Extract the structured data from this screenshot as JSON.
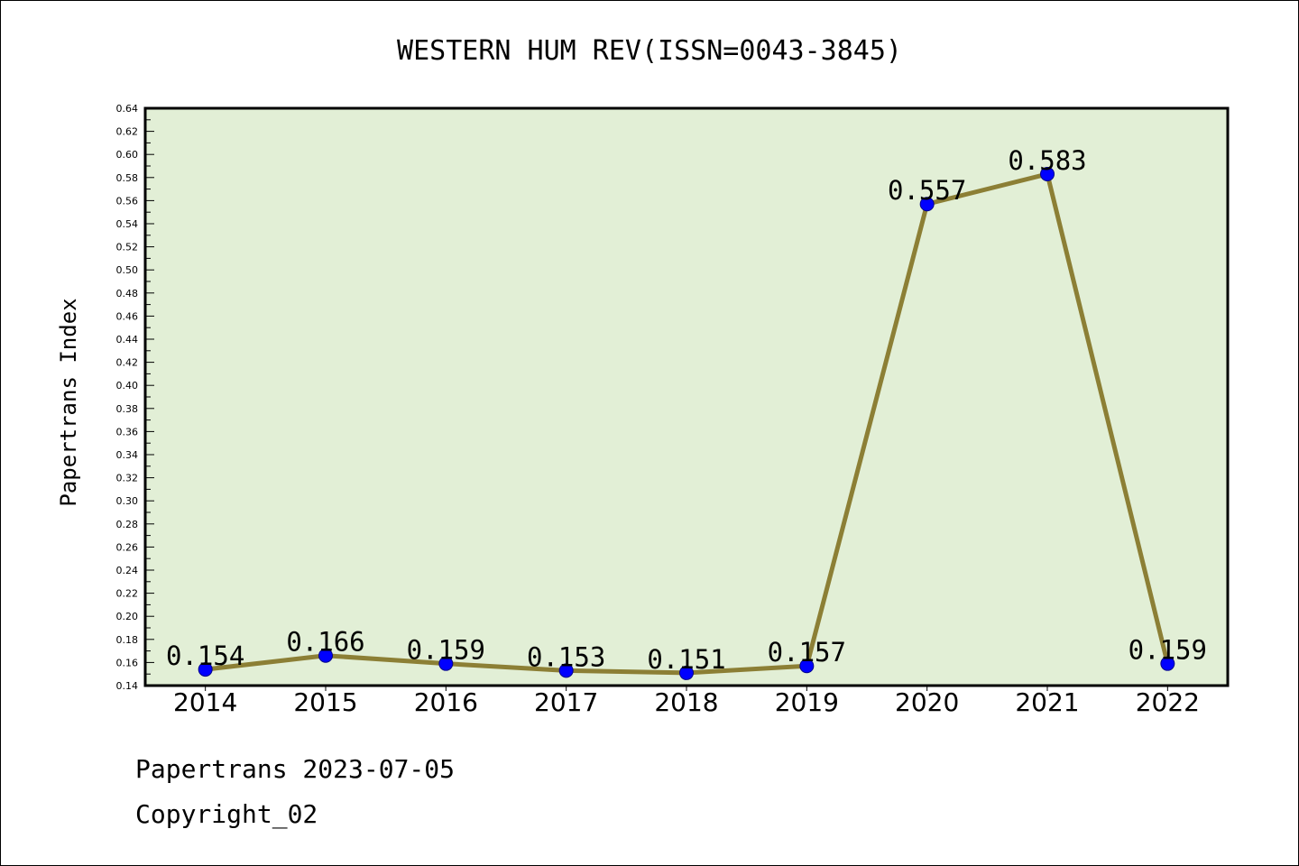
{
  "chart_data": {
    "type": "line",
    "title": "WESTERN HUM REV(ISSN=0043-3845)",
    "xlabel": "",
    "ylabel": "Papertrans Index",
    "categories": [
      "2014",
      "2015",
      "2016",
      "2017",
      "2018",
      "2019",
      "2020",
      "2021",
      "2022"
    ],
    "series": [
      {
        "values": [
          0.154,
          0.166,
          0.159,
          0.153,
          0.151,
          0.157,
          0.557,
          0.583,
          0.159
        ],
        "labels": [
          "0.154",
          "0.166",
          "0.159",
          "0.153",
          "0.151",
          "0.157",
          "0.557",
          "0.583",
          "0.159"
        ]
      }
    ],
    "ylim": [
      0.14,
      0.64
    ],
    "yticks": [
      "0.14",
      "0.16",
      "0.18",
      "0.20",
      "0.22",
      "0.24",
      "0.26",
      "0.28",
      "0.30",
      "0.32",
      "0.34",
      "0.36",
      "0.38",
      "0.40",
      "0.42",
      "0.44",
      "0.46",
      "0.48",
      "0.50",
      "0.52",
      "0.54",
      "0.56",
      "0.58",
      "0.60",
      "0.62",
      "0.64"
    ],
    "grid": false,
    "legend": "none",
    "colors": {
      "plot_background": "#e2efd6",
      "line": "#8c7f35",
      "marker": "#0000ff"
    }
  },
  "footer": {
    "source": "Papertrans 2023-07-05",
    "copyright": "Copyright_02"
  }
}
